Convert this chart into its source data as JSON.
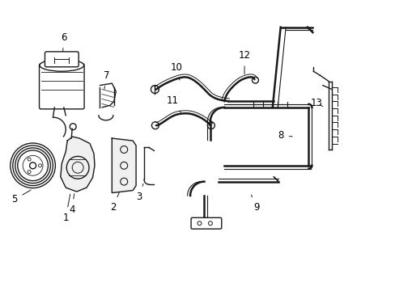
{
  "background_color": "#ffffff",
  "line_color": "#1a1a1a",
  "label_color": "#000000",
  "figsize": [
    4.89,
    3.6
  ],
  "dpi": 100,
  "xlim": [
    0,
    9.78
  ],
  "ylim": [
    0,
    7.2
  ]
}
